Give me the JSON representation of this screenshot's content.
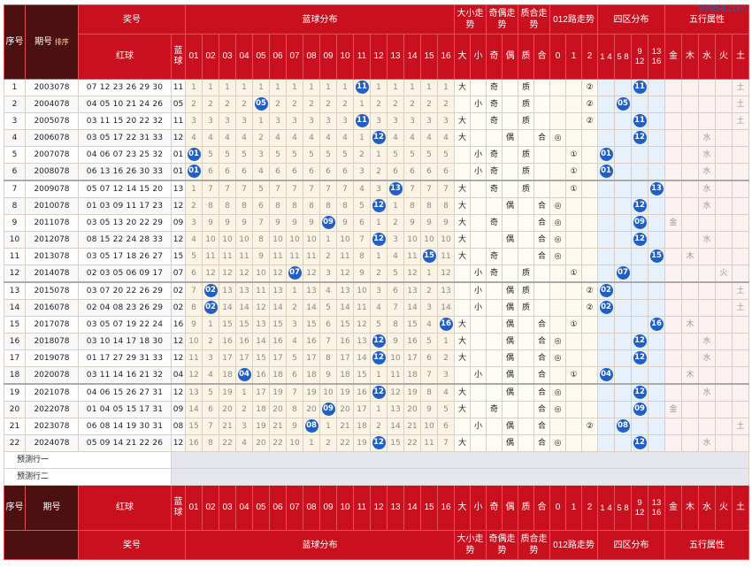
{
  "watermark": "97654.com",
  "header": {
    "seq": "序号",
    "period": "期号",
    "sort": "排序",
    "award": "奖号",
    "red": "红球",
    "blue": "蓝球",
    "dist": "蓝球分布",
    "daxiao": "大小走势",
    "jiou": "奇偶走势",
    "zhihe": "质合走势",
    "l012": "012路走势",
    "zone": "四区分布",
    "wuxing": "五行属性",
    "dist_nums": [
      "01",
      "02",
      "03",
      "04",
      "05",
      "06",
      "07",
      "08",
      "09",
      "10",
      "11",
      "12",
      "13",
      "14",
      "15",
      "16"
    ],
    "dx_labels": [
      "大",
      "小"
    ],
    "jo_labels": [
      "奇",
      "偶"
    ],
    "zh_labels": [
      "质",
      "合"
    ],
    "l012_labels": [
      "0",
      "1",
      "2"
    ],
    "zone_labels": [
      "1 4",
      "5 8",
      "9 12",
      "13 16"
    ],
    "wx_labels": [
      "金",
      "木",
      "水",
      "火",
      "土"
    ]
  },
  "rows": [
    {
      "seq": "1",
      "period": "2003078",
      "red": "07 12 23 26 29 30",
      "blue": "11",
      "dist": [
        "1",
        "1",
        "1",
        "1",
        "1",
        "1",
        "1",
        "1",
        "1",
        "1",
        "11",
        "1",
        "1",
        "1",
        "1",
        "1"
      ],
      "dx": "大",
      "jo": "奇",
      "zh": "质",
      "l012": "②",
      "zone": [
        "",
        "",
        "11",
        ""
      ],
      "wx": "土",
      "wxi": 4
    },
    {
      "seq": "2",
      "period": "2004078",
      "red": "04 05 10 21 24 26",
      "blue": "05",
      "dist": [
        "2",
        "2",
        "2",
        "2",
        "05",
        "2",
        "2",
        "2",
        "2",
        "2",
        "1",
        "2",
        "2",
        "2",
        "2",
        "2"
      ],
      "dx": "小",
      "jo": "奇",
      "zh": "质",
      "l012": "②",
      "zone": [
        "",
        "05",
        "",
        ""
      ],
      "wx": "土",
      "wxi": 4
    },
    {
      "seq": "3",
      "period": "2005078",
      "red": "03 11 15 20 22 32",
      "blue": "11",
      "dist": [
        "3",
        "3",
        "3",
        "3",
        "1",
        "3",
        "3",
        "3",
        "3",
        "3",
        "11",
        "3",
        "3",
        "3",
        "3",
        "3"
      ],
      "dx": "大",
      "jo": "奇",
      "zh": "质",
      "l012": "②",
      "zone": [
        "",
        "",
        "11",
        ""
      ],
      "wx": "土",
      "wxi": 4
    },
    {
      "seq": "4",
      "period": "2006078",
      "red": "03 05 17 22 31 33",
      "blue": "12",
      "dist": [
        "4",
        "4",
        "4",
        "4",
        "2",
        "4",
        "4",
        "4",
        "4",
        "4",
        "1",
        "12",
        "4",
        "4",
        "4",
        "4"
      ],
      "dx": "大",
      "jo": "偶",
      "zh": "合",
      "l012": "◎",
      "zone": [
        "",
        "",
        "12",
        ""
      ],
      "wx": "水",
      "wxi": 2
    },
    {
      "seq": "5",
      "period": "2007078",
      "red": "04 06 07 23 25 32",
      "blue": "01",
      "dist": [
        "01",
        "5",
        "5",
        "5",
        "3",
        "5",
        "5",
        "5",
        "5",
        "5",
        "2",
        "1",
        "5",
        "5",
        "5",
        "5"
      ],
      "dx": "小",
      "jo": "奇",
      "zh": "质",
      "l012": "①",
      "zone": [
        "01",
        "",
        "",
        ""
      ],
      "wx": "水",
      "wxi": 2
    },
    {
      "seq": "6",
      "period": "2008078",
      "red": "06 13 16 26 30 33",
      "blue": "01",
      "dist": [
        "01",
        "6",
        "6",
        "6",
        "4",
        "6",
        "6",
        "6",
        "6",
        "6",
        "3",
        "2",
        "6",
        "6",
        "6",
        "6"
      ],
      "dx": "小",
      "jo": "奇",
      "zh": "质",
      "l012": "①",
      "zone": [
        "01",
        "",
        "",
        ""
      ],
      "wx": "水",
      "wxi": 2
    },
    {
      "seq": "7",
      "period": "2009078",
      "red": "05 07 12 14 15 20",
      "blue": "13",
      "dist": [
        "1",
        "7",
        "7",
        "7",
        "5",
        "7",
        "7",
        "7",
        "7",
        "7",
        "4",
        "3",
        "13",
        "7",
        "7",
        "7"
      ],
      "dx": "大",
      "jo": "奇",
      "zh": "质",
      "l012": "①",
      "zone": [
        "",
        "",
        "",
        "13"
      ],
      "wx": "水",
      "wxi": 2
    },
    {
      "seq": "8",
      "period": "2010078",
      "red": "01 03 09 11 17 23",
      "blue": "12",
      "dist": [
        "2",
        "8",
        "8",
        "8",
        "6",
        "8",
        "8",
        "8",
        "8",
        "8",
        "5",
        "12",
        "1",
        "8",
        "8",
        "8"
      ],
      "dx": "大",
      "jo": "偶",
      "zh": "合",
      "l012": "◎",
      "zone": [
        "",
        "",
        "12",
        ""
      ],
      "wx": "水",
      "wxi": 2
    },
    {
      "seq": "9",
      "period": "2011078",
      "red": "03 05 13 20 22 29",
      "blue": "09",
      "dist": [
        "3",
        "9",
        "9",
        "9",
        "7",
        "9",
        "9",
        "9",
        "09",
        "9",
        "6",
        "1",
        "2",
        "9",
        "9",
        "9"
      ],
      "dx": "大",
      "jo": "奇",
      "zh": "合",
      "l012": "◎",
      "zone": [
        "",
        "",
        "09",
        ""
      ],
      "wx": "金",
      "wxi": 0
    },
    {
      "seq": "10",
      "period": "2012078",
      "red": "08 15 22 24 28 33",
      "blue": "12",
      "dist": [
        "4",
        "10",
        "10",
        "10",
        "8",
        "10",
        "10",
        "10",
        "1",
        "10",
        "7",
        "12",
        "3",
        "10",
        "10",
        "10"
      ],
      "dx": "大",
      "jo": "偶",
      "zh": "合",
      "l012": "◎",
      "zone": [
        "",
        "",
        "12",
        ""
      ],
      "wx": "水",
      "wxi": 2
    },
    {
      "seq": "11",
      "period": "2013078",
      "red": "03 05 17 18 26 27",
      "blue": "15",
      "dist": [
        "5",
        "11",
        "11",
        "11",
        "9",
        "11",
        "11",
        "11",
        "2",
        "11",
        "8",
        "1",
        "4",
        "11",
        "15",
        "11"
      ],
      "dx": "大",
      "jo": "奇",
      "zh": "合",
      "l012": "◎",
      "zone": [
        "",
        "",
        "",
        "15"
      ],
      "wx": "木",
      "wxi": 1
    },
    {
      "seq": "12",
      "period": "2014078",
      "red": "02 03 05 06 09 17",
      "blue": "07",
      "dist": [
        "6",
        "12",
        "12",
        "12",
        "10",
        "12",
        "07",
        "12",
        "3",
        "12",
        "9",
        "2",
        "5",
        "12",
        "1",
        "12"
      ],
      "dx": "小",
      "jo": "奇",
      "zh": "质",
      "l012": "①",
      "zone": [
        "",
        "07",
        "",
        ""
      ],
      "wx": "火",
      "wxi": 3
    },
    {
      "seq": "13",
      "period": "2015078",
      "red": "03 07 20 22 26 29",
      "blue": "02",
      "dist": [
        "7",
        "02",
        "13",
        "13",
        "11",
        "13",
        "1",
        "13",
        "4",
        "13",
        "10",
        "3",
        "6",
        "13",
        "2",
        "13"
      ],
      "dx": "小",
      "jo": "偶",
      "zh": "质",
      "l012": "②",
      "zone": [
        "02",
        "",
        "",
        ""
      ],
      "wx": "土",
      "wxi": 4
    },
    {
      "seq": "14",
      "period": "2016078",
      "red": "02 04 08 23 26 29",
      "blue": "02",
      "dist": [
        "8",
        "02",
        "14",
        "14",
        "12",
        "14",
        "2",
        "14",
        "5",
        "14",
        "11",
        "4",
        "7",
        "14",
        "3",
        "14"
      ],
      "dx": "小",
      "jo": "偶",
      "zh": "质",
      "l012": "②",
      "zone": [
        "02",
        "",
        "",
        ""
      ],
      "wx": "土",
      "wxi": 4
    },
    {
      "seq": "15",
      "period": "2017078",
      "red": "03 05 07 19 22 24",
      "blue": "16",
      "dist": [
        "9",
        "1",
        "15",
        "15",
        "13",
        "15",
        "3",
        "15",
        "6",
        "15",
        "12",
        "5",
        "8",
        "15",
        "4",
        "16"
      ],
      "dx": "大",
      "jo": "偶",
      "zh": "合",
      "l012": "①",
      "zone": [
        "",
        "",
        "",
        "16"
      ],
      "wx": "木",
      "wxi": 1
    },
    {
      "seq": "16",
      "period": "2018078",
      "red": "03 10 14 17 18 30",
      "blue": "12",
      "dist": [
        "10",
        "2",
        "16",
        "16",
        "14",
        "16",
        "4",
        "16",
        "7",
        "16",
        "13",
        "12",
        "9",
        "16",
        "5",
        "1"
      ],
      "dx": "大",
      "jo": "偶",
      "zh": "合",
      "l012": "◎",
      "zone": [
        "",
        "",
        "12",
        ""
      ],
      "wx": "水",
      "wxi": 2
    },
    {
      "seq": "17",
      "period": "2019078",
      "red": "01 17 27 29 31 33",
      "blue": "12",
      "dist": [
        "11",
        "3",
        "17",
        "17",
        "15",
        "17",
        "5",
        "17",
        "8",
        "17",
        "14",
        "12",
        "10",
        "17",
        "6",
        "2"
      ],
      "dx": "大",
      "jo": "偶",
      "zh": "合",
      "l012": "◎",
      "zone": [
        "",
        "",
        "12",
        ""
      ],
      "wx": "水",
      "wxi": 2
    },
    {
      "seq": "18",
      "period": "2020078",
      "red": "03 11 14 16 21 32",
      "blue": "04",
      "dist": [
        "12",
        "4",
        "18",
        "04",
        "16",
        "18",
        "6",
        "18",
        "9",
        "18",
        "15",
        "1",
        "11",
        "18",
        "7",
        "3"
      ],
      "dx": "小",
      "jo": "偶",
      "zh": "合",
      "l012": "①",
      "zone": [
        "04",
        "",
        "",
        ""
      ],
      "wx": "木",
      "wxi": 1
    },
    {
      "seq": "19",
      "period": "2021078",
      "red": "04 06 15 26 27 31",
      "blue": "12",
      "dist": [
        "13",
        "5",
        "19",
        "1",
        "17",
        "19",
        "7",
        "19",
        "10",
        "19",
        "16",
        "12",
        "12",
        "19",
        "8",
        "4"
      ],
      "dx": "大",
      "jo": "偶",
      "zh": "合",
      "l012": "◎",
      "zone": [
        "",
        "",
        "12",
        ""
      ],
      "wx": "水",
      "wxi": 2
    },
    {
      "seq": "20",
      "period": "2022078",
      "red": "01 04 05 15 17 31",
      "blue": "09",
      "dist": [
        "14",
        "6",
        "20",
        "2",
        "18",
        "20",
        "8",
        "20",
        "09",
        "20",
        "17",
        "1",
        "13",
        "20",
        "9",
        "5"
      ],
      "dx": "大",
      "jo": "奇",
      "zh": "合",
      "l012": "◎",
      "zone": [
        "",
        "",
        "09",
        ""
      ],
      "wx": "金",
      "wxi": 0
    },
    {
      "seq": "21",
      "period": "2023078",
      "red": "06 08 14 19 30 31",
      "blue": "08",
      "dist": [
        "15",
        "7",
        "21",
        "3",
        "19",
        "21",
        "9",
        "08",
        "1",
        "21",
        "18",
        "2",
        "14",
        "21",
        "10",
        "6"
      ],
      "dx": "小",
      "jo": "偶",
      "zh": "合",
      "l012": "②",
      "zone": [
        "",
        "08",
        "",
        ""
      ],
      "wx": "土",
      "wxi": 4
    },
    {
      "seq": "22",
      "period": "2024078",
      "red": "05 09 14 21 22 26",
      "blue": "12",
      "dist": [
        "16",
        "8",
        "22",
        "4",
        "20",
        "22",
        "10",
        "1",
        "2",
        "22",
        "19",
        "12",
        "15",
        "22",
        "11",
        "7"
      ],
      "dx": "大",
      "jo": "偶",
      "zh": "合",
      "l012": "◎",
      "zone": [
        "",
        "",
        "12",
        ""
      ],
      "wx": "水",
      "wxi": 2
    }
  ],
  "pred": [
    "预测行一",
    "预测行二"
  ],
  "colors": {
    "header_red": "#c8101e",
    "header_dark": "#4d1010",
    "ball_blue": "#1f5fc6"
  }
}
